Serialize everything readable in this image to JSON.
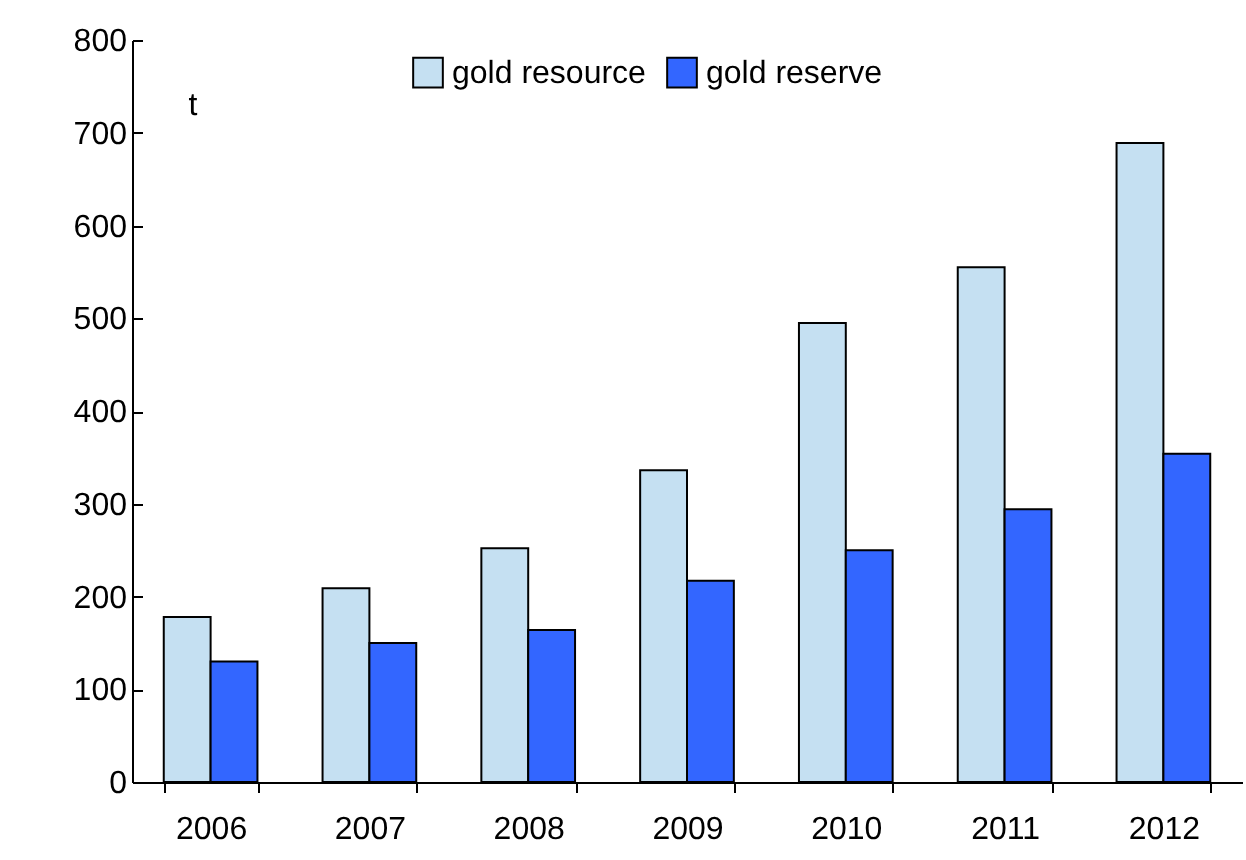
{
  "chart_data": {
    "type": "bar",
    "ylabel": "t",
    "categories": [
      "2006",
      "2007",
      "2008",
      "2009",
      "2010",
      "2011",
      "2012"
    ],
    "series": [
      {
        "name": "gold resource",
        "color": "#c5e0f2",
        "values": [
          178,
          209,
          252,
          336,
          495,
          555,
          689
        ]
      },
      {
        "name": "gold reserve",
        "color": "#3366ff",
        "values": [
          130,
          150,
          164,
          217,
          250,
          294,
          354
        ]
      }
    ],
    "ylim": [
      0,
      800
    ],
    "yticks": [
      0,
      100,
      200,
      300,
      400,
      500,
      600,
      700,
      800
    ],
    "grid": false,
    "legend": "top"
  }
}
